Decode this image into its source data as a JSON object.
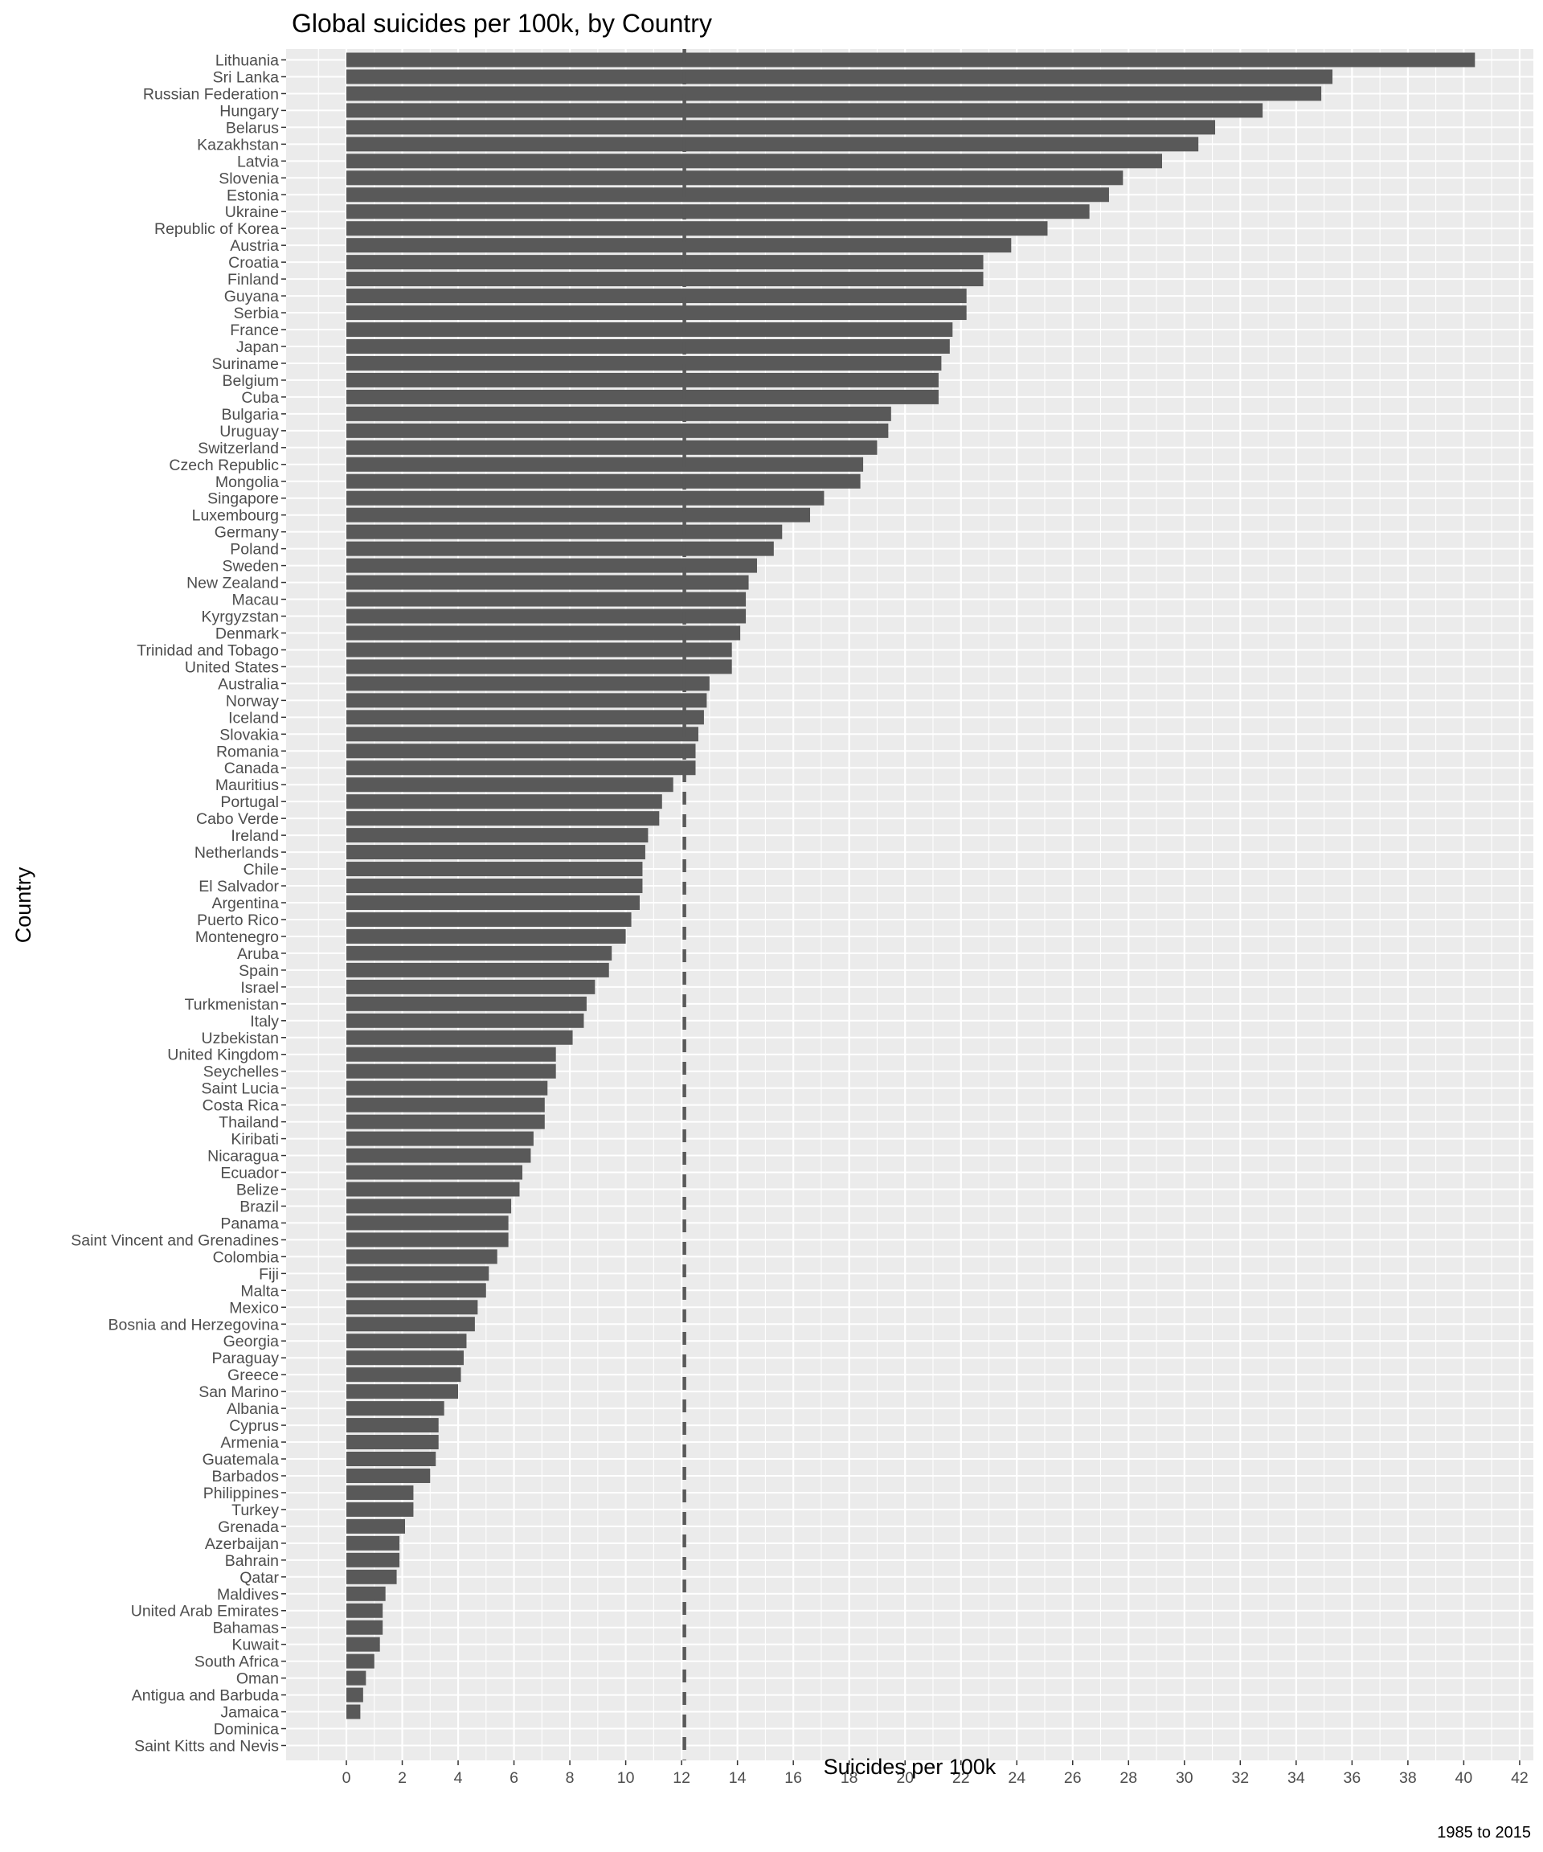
{
  "chart_data": {
    "type": "bar",
    "orientation": "horizontal",
    "title": "Global suicides per 100k, by Country",
    "xlabel": "Suicides per 100k",
    "ylabel": "Country",
    "caption": "1985 to 2015",
    "xlim": [
      0,
      42
    ],
    "x_ticks": [
      "0",
      "2",
      "4",
      "6",
      "8",
      "10",
      "12",
      "14",
      "16",
      "18",
      "20",
      "22",
      "24",
      "26",
      "28",
      "30",
      "32",
      "34",
      "36",
      "38",
      "40",
      "42"
    ],
    "reference_line": 12.1,
    "grid": true,
    "bar_color": "#595959",
    "panel_color": "#ebebeb",
    "categories": [
      "Lithuania",
      "Sri Lanka",
      "Russian Federation",
      "Hungary",
      "Belarus",
      "Kazakhstan",
      "Latvia",
      "Slovenia",
      "Estonia",
      "Ukraine",
      "Republic of Korea",
      "Austria",
      "Croatia",
      "Finland",
      "Guyana",
      "Serbia",
      "France",
      "Japan",
      "Suriname",
      "Belgium",
      "Cuba",
      "Bulgaria",
      "Uruguay",
      "Switzerland",
      "Czech Republic",
      "Mongolia",
      "Singapore",
      "Luxembourg",
      "Germany",
      "Poland",
      "Sweden",
      "New Zealand",
      "Macau",
      "Kyrgyzstan",
      "Denmark",
      "Trinidad and Tobago",
      "United States",
      "Australia",
      "Norway",
      "Iceland",
      "Slovakia",
      "Romania",
      "Canada",
      "Mauritius",
      "Portugal",
      "Cabo Verde",
      "Ireland",
      "Netherlands",
      "Chile",
      "El Salvador",
      "Argentina",
      "Puerto Rico",
      "Montenegro",
      "Aruba",
      "Spain",
      "Israel",
      "Turkmenistan",
      "Italy",
      "Uzbekistan",
      "United Kingdom",
      "Seychelles",
      "Saint Lucia",
      "Costa Rica",
      "Thailand",
      "Kiribati",
      "Nicaragua",
      "Ecuador",
      "Belize",
      "Brazil",
      "Panama",
      "Saint Vincent and Grenadines",
      "Colombia",
      "Fiji",
      "Malta",
      "Mexico",
      "Bosnia and Herzegovina",
      "Georgia",
      "Paraguay",
      "Greece",
      "San Marino",
      "Albania",
      "Cyprus",
      "Armenia",
      "Guatemala",
      "Barbados",
      "Philippines",
      "Turkey",
      "Grenada",
      "Azerbaijan",
      "Bahrain",
      "Qatar",
      "Maldives",
      "United Arab Emirates",
      "Bahamas",
      "Kuwait",
      "South Africa",
      "Oman",
      "Antigua and Barbuda",
      "Jamaica",
      "Dominica",
      "Saint Kitts and Nevis"
    ],
    "values": [
      40.4,
      35.3,
      34.9,
      32.8,
      31.1,
      30.5,
      29.2,
      27.8,
      27.3,
      26.6,
      25.1,
      23.8,
      22.8,
      22.8,
      22.2,
      22.2,
      21.7,
      21.6,
      21.3,
      21.2,
      21.2,
      19.5,
      19.4,
      19.0,
      18.5,
      18.4,
      17.1,
      16.6,
      15.6,
      15.3,
      14.7,
      14.4,
      14.3,
      14.3,
      14.1,
      13.8,
      13.8,
      13.0,
      12.9,
      12.8,
      12.6,
      12.5,
      12.5,
      11.7,
      11.3,
      11.2,
      10.8,
      10.7,
      10.6,
      10.6,
      10.5,
      10.2,
      10.0,
      9.5,
      9.4,
      8.9,
      8.6,
      8.5,
      8.1,
      7.5,
      7.5,
      7.2,
      7.1,
      7.1,
      6.7,
      6.6,
      6.3,
      6.2,
      5.9,
      5.8,
      5.8,
      5.4,
      5.1,
      5.0,
      4.7,
      4.6,
      4.3,
      4.2,
      4.1,
      4.0,
      3.5,
      3.3,
      3.3,
      3.2,
      3.0,
      2.4,
      2.4,
      2.1,
      1.9,
      1.9,
      1.8,
      1.4,
      1.3,
      1.3,
      1.2,
      1.0,
      0.7,
      0.6,
      0.5,
      0.0,
      0.0
    ]
  }
}
